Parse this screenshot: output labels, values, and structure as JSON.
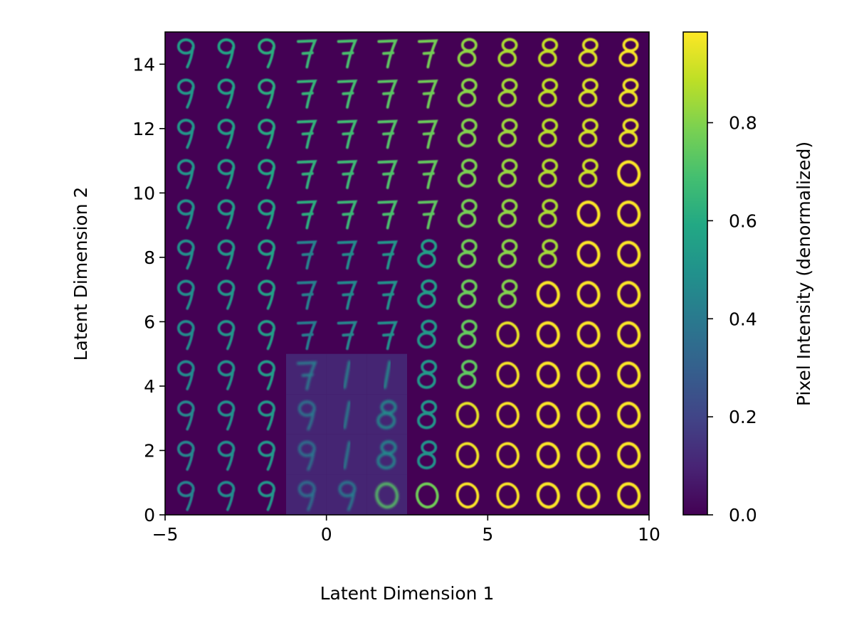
{
  "chart_data": {
    "type": "heatmap",
    "description": "Latent space manifold of a generative model: a 12 x 12 grid of decoded digit images shown with the viridis colormap",
    "xlabel": "Latent Dimension 1",
    "ylabel": "Latent Dimension 2",
    "xlim": [
      -5,
      10
    ],
    "ylim": [
      0,
      15
    ],
    "xticks": [
      -5,
      0,
      5,
      10
    ],
    "yticks": [
      0,
      2,
      4,
      6,
      8,
      10,
      12,
      14
    ],
    "xtick_labels": [
      "−5",
      "0",
      "5",
      "10"
    ],
    "ytick_labels": [
      "0",
      "2",
      "4",
      "6",
      "8",
      "10",
      "12",
      "14"
    ],
    "grid": false,
    "grid_cells": {
      "columns": 12,
      "rows": 12
    },
    "digit_grid_rows_top_to_bottom": [
      [
        "9",
        "9",
        "9",
        "7",
        "7",
        "7",
        "7",
        "8",
        "8",
        "8",
        "8",
        "8"
      ],
      [
        "9",
        "9",
        "9",
        "7",
        "7",
        "7",
        "7",
        "8",
        "8",
        "8",
        "8",
        "8"
      ],
      [
        "9",
        "9",
        "9",
        "7",
        "7",
        "7",
        "7",
        "8",
        "8",
        "8",
        "8",
        "8"
      ],
      [
        "9",
        "9",
        "9",
        "7",
        "7",
        "7",
        "7",
        "8",
        "8",
        "8",
        "8",
        "0"
      ],
      [
        "9",
        "9",
        "9",
        "7",
        "7",
        "7",
        "7",
        "8",
        "8",
        "8",
        "0",
        "0"
      ],
      [
        "9",
        "9",
        "9",
        "7",
        "7",
        "7",
        "8",
        "8",
        "8",
        "8",
        "0",
        "0"
      ],
      [
        "9",
        "9",
        "9",
        "7",
        "7",
        "7",
        "8",
        "8",
        "8",
        "0",
        "0",
        "0"
      ],
      [
        "9",
        "9",
        "9",
        "7",
        "7",
        "7",
        "8",
        "8",
        "0",
        "0",
        "0",
        "0"
      ],
      [
        "9",
        "9",
        "9",
        "7",
        "1",
        "1",
        "8",
        "8",
        "0",
        "0",
        "0",
        "0"
      ],
      [
        "9",
        "9",
        "9",
        "9",
        "1",
        "8",
        "8",
        "0",
        "0",
        "0",
        "0",
        "0"
      ],
      [
        "9",
        "9",
        "9",
        "9",
        "1",
        "8",
        "8",
        "0",
        "0",
        "0",
        "0",
        "0"
      ],
      [
        "9",
        "9",
        "9",
        "9",
        "9",
        "0",
        "0",
        "0",
        "0",
        "0",
        "0",
        "0"
      ]
    ],
    "colorbar": {
      "label": "Pixel Intensity (denormalized)",
      "colormap": "viridis",
      "range": [
        0.0,
        0.985
      ],
      "ticks": [
        0.0,
        0.2,
        0.4,
        0.6,
        0.8
      ],
      "tick_labels": [
        "0.0",
        "0.2",
        "0.4",
        "0.6",
        "0.8"
      ]
    },
    "colors": {
      "background_low": "#440154",
      "mid": "#21918c",
      "high": "#fde725"
    }
  }
}
